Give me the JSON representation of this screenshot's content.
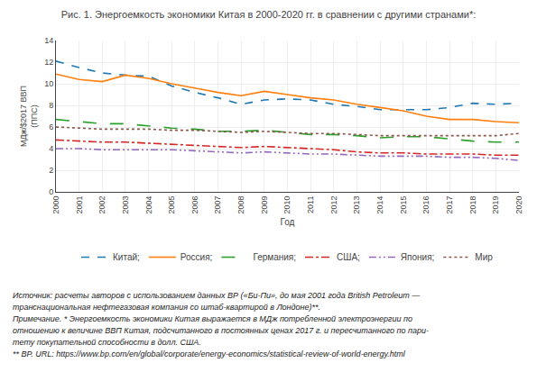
{
  "chart_data": {
    "type": "line",
    "title": "Рис. 1. Энергоемкость экономики Китая в 2000-2020 гг. в сравнении с другими странами*:",
    "xlabel": "Год",
    "ylabel": "МДж/$2017 ВВП\n(ППС)",
    "x": [
      2000,
      2001,
      2002,
      2003,
      2004,
      2005,
      2006,
      2007,
      2008,
      2009,
      2010,
      2011,
      2012,
      2013,
      2014,
      2015,
      2016,
      2017,
      2018,
      2019,
      2020
    ],
    "series": [
      {
        "name": "Китай;",
        "line_style": "dash",
        "values": [
          12.1,
          11.5,
          11.0,
          10.8,
          10.7,
          9.8,
          9.2,
          8.7,
          8.1,
          8.5,
          8.6,
          8.5,
          8.1,
          7.9,
          7.6,
          7.6,
          7.6,
          7.8,
          8.2,
          8.1,
          8.2
        ]
      },
      {
        "name": "Россия;",
        "line_style": "solid",
        "values": [
          10.9,
          10.4,
          10.2,
          10.8,
          10.5,
          10.0,
          9.6,
          9.2,
          8.9,
          9.3,
          9.0,
          8.7,
          8.5,
          8.1,
          7.8,
          7.5,
          7.0,
          6.7,
          6.7,
          6.5,
          6.4
        ]
      },
      {
        "name": "Германия;",
        "line_style": "longdash",
        "values": [
          6.7,
          6.5,
          6.3,
          6.3,
          6.1,
          5.9,
          5.8,
          5.6,
          5.6,
          5.7,
          5.5,
          5.3,
          5.3,
          5.2,
          5.0,
          5.1,
          5.1,
          4.9,
          4.7,
          4.6,
          4.6
        ]
      },
      {
        "name": "США;",
        "line_style": "dashdot",
        "values": [
          4.8,
          4.7,
          4.6,
          4.6,
          4.5,
          4.4,
          4.3,
          4.2,
          4.1,
          4.2,
          4.1,
          4.0,
          3.9,
          3.7,
          3.6,
          3.6,
          3.5,
          3.5,
          3.5,
          3.4,
          3.4
        ]
      },
      {
        "name": "Япония;",
        "line_style": "dashdotdot",
        "values": [
          4.0,
          4.0,
          3.9,
          3.9,
          3.9,
          3.9,
          3.8,
          3.7,
          3.6,
          3.7,
          3.6,
          3.5,
          3.5,
          3.4,
          3.3,
          3.3,
          3.3,
          3.2,
          3.2,
          3.1,
          2.9
        ]
      },
      {
        "name": "Мир",
        "line_style": "dot",
        "values": [
          6.0,
          5.9,
          5.8,
          5.8,
          5.8,
          5.7,
          5.7,
          5.6,
          5.5,
          5.6,
          5.5,
          5.4,
          5.4,
          5.3,
          5.2,
          5.2,
          5.2,
          5.2,
          5.2,
          5.2,
          5.4
        ]
      }
    ],
    "xlim": [
      2000,
      2020
    ],
    "xticks": [
      2000,
      2001,
      2002,
      2003,
      2004,
      2005,
      2006,
      2007,
      2008,
      2009,
      2010,
      2011,
      2012,
      2013,
      2014,
      2015,
      2016,
      2017,
      2018,
      2019,
      2020
    ],
    "ylim": [
      0,
      14
    ],
    "yticks": [
      0,
      2,
      4,
      6,
      8,
      10,
      12,
      14
    ],
    "grid": true,
    "legend": "bottom",
    "annotations": [
      "Источник: расчеты авторов с использованием данных ВР («Би-Пи», до мая 2001 года British Petroleum —",
      "транснациональная нефтегазовая компания со штаб-квартирой в Лондоне)**.",
      "Примечание. * Энергоемкость экономики Китая выражается в МДж потребленной электроэнергии по",
      "отношению к величине ВВП Китая, подсчитанного в постоянных ценах 2017 г. и пересчитанного по пари-",
      "тету покупательной способности в долл. США.",
      "** BP. URL: https://www.bp.com/en/global/corporate/energy-economics/statistical-review-of-world-energy.html"
    ]
  }
}
